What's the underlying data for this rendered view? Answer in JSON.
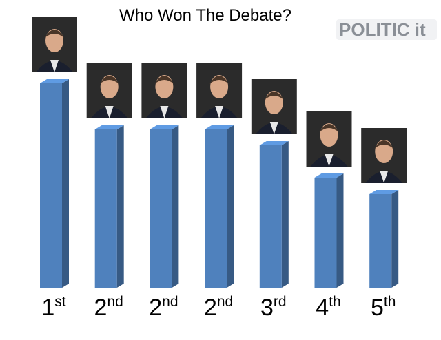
{
  "logo": "POLITIC it",
  "chart_data": {
    "type": "bar3d",
    "title": "Who Won The Debate?",
    "categories": [
      "1st",
      "2nd",
      "2nd",
      "2nd",
      "3rd",
      "4th",
      "5th"
    ],
    "values": [
      297,
      230,
      230,
      230,
      207,
      160,
      136
    ],
    "color": "#4f81bd",
    "ylim": [
      0,
      300
    ]
  }
}
